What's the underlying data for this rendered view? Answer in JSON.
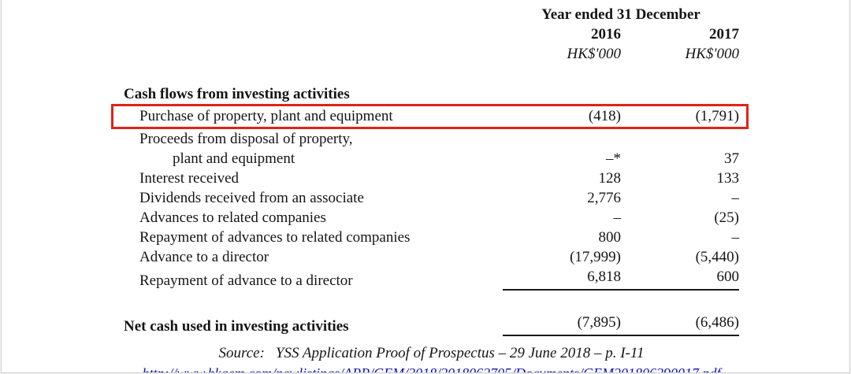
{
  "header": {
    "period": "Year ended 31 December",
    "years": [
      "2016",
      "2017"
    ],
    "units": [
      "HK$'000",
      "HK$'000"
    ]
  },
  "section": {
    "title": "Cash flows from investing activities"
  },
  "table": {
    "rows": [
      {
        "label": "Purchase of property, plant and equipment",
        "v2016": "(418)",
        "v2017": "(1,791)",
        "highlighted": "true"
      },
      {
        "label": "Proceeds from disposal of property,",
        "label2": "plant and equipment",
        "v2016": "–*",
        "v2017": "37"
      },
      {
        "label": "Interest received",
        "v2016": "128",
        "v2017": "133"
      },
      {
        "label": "Dividends received from an associate",
        "v2016": "2,776",
        "v2017": "–"
      },
      {
        "label": "Advances to related companies",
        "v2016": "–",
        "v2017": "(25)"
      },
      {
        "label": "Repayment of advances to related companies",
        "v2016": "800",
        "v2017": "–"
      },
      {
        "label": "Advance to a director",
        "v2016": "(17,999)",
        "v2017": "(5,440)"
      },
      {
        "label": "Repayment of advance to a director",
        "v2016": "6,818",
        "v2017": "600"
      }
    ],
    "total": {
      "label": "Net cash used in investing activities",
      "v2016": "(7,895)",
      "v2017": "(6,486)"
    }
  },
  "source": {
    "label": "Source:",
    "text": "YSS Application Proof of Prospectus – 29 June 2018 – p. I-11"
  },
  "link": {
    "url": "http://www.hkgem.com/newlistings/APP/GEM/2018/2018062705/Documents/GEM201806290017.pdf"
  },
  "colors": {
    "highlight_border": "#e02318",
    "link": "#1111bb"
  }
}
